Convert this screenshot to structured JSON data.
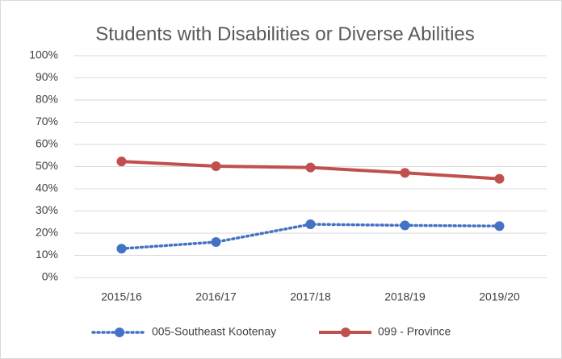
{
  "chart_data": {
    "type": "line",
    "title": "Students with Disabilities or Diverse Abilities",
    "categories": [
      "2015/16",
      "2016/17",
      "2017/18",
      "2018/19",
      "2019/20"
    ],
    "series": [
      {
        "name": "005-Southeast Kootenay",
        "color": "#4472c4",
        "values": [
          13,
          16,
          24,
          23.5,
          23.2
        ]
      },
      {
        "name": "099 - Province",
        "color": "#c0504d",
        "values": [
          52.3,
          50.2,
          49.6,
          47.2,
          44.5
        ]
      }
    ],
    "ylim": [
      0,
      100
    ],
    "yticks": [
      {
        "value": 0,
        "label": "0%"
      },
      {
        "value": 10,
        "label": "10%"
      },
      {
        "value": 20,
        "label": "20%"
      },
      {
        "value": 30,
        "label": "30%"
      },
      {
        "value": 40,
        "label": "40%"
      },
      {
        "value": 50,
        "label": "50%"
      },
      {
        "value": 60,
        "label": "60%"
      },
      {
        "value": 70,
        "label": "70%"
      },
      {
        "value": 80,
        "label": "80%"
      },
      {
        "value": 90,
        "label": "90%"
      },
      {
        "value": 100,
        "label": "100%"
      }
    ],
    "grid": true,
    "legend": "bottom"
  }
}
